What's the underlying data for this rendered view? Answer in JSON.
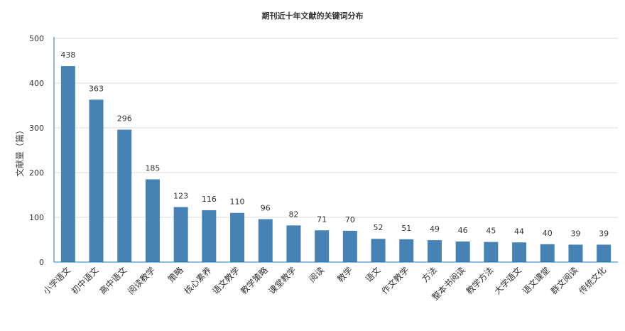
{
  "chart_data": {
    "type": "bar",
    "title": "期刊近十年文献的关键词分布",
    "ylabel": "文献量（篇）",
    "xlabel": "",
    "ylim": [
      0,
      500
    ],
    "yticks": [
      0,
      100,
      200,
      300,
      400,
      500
    ],
    "grid": true,
    "bar_color": "#4682b4",
    "categories": [
      "小学语文",
      "初中语文",
      "高中语文",
      "阅读教学",
      "策略",
      "核心素养",
      "语文教学",
      "教学策略",
      "课堂教学",
      "阅读",
      "教学",
      "语文",
      "作文教学",
      "方法",
      "整本书阅读",
      "教学方法",
      "大学语文",
      "语文课堂",
      "群文阅读",
      "传统文化"
    ],
    "values": [
      438,
      363,
      296,
      185,
      123,
      116,
      110,
      96,
      82,
      71,
      70,
      52,
      51,
      49,
      46,
      45,
      44,
      40,
      39,
      39
    ]
  }
}
